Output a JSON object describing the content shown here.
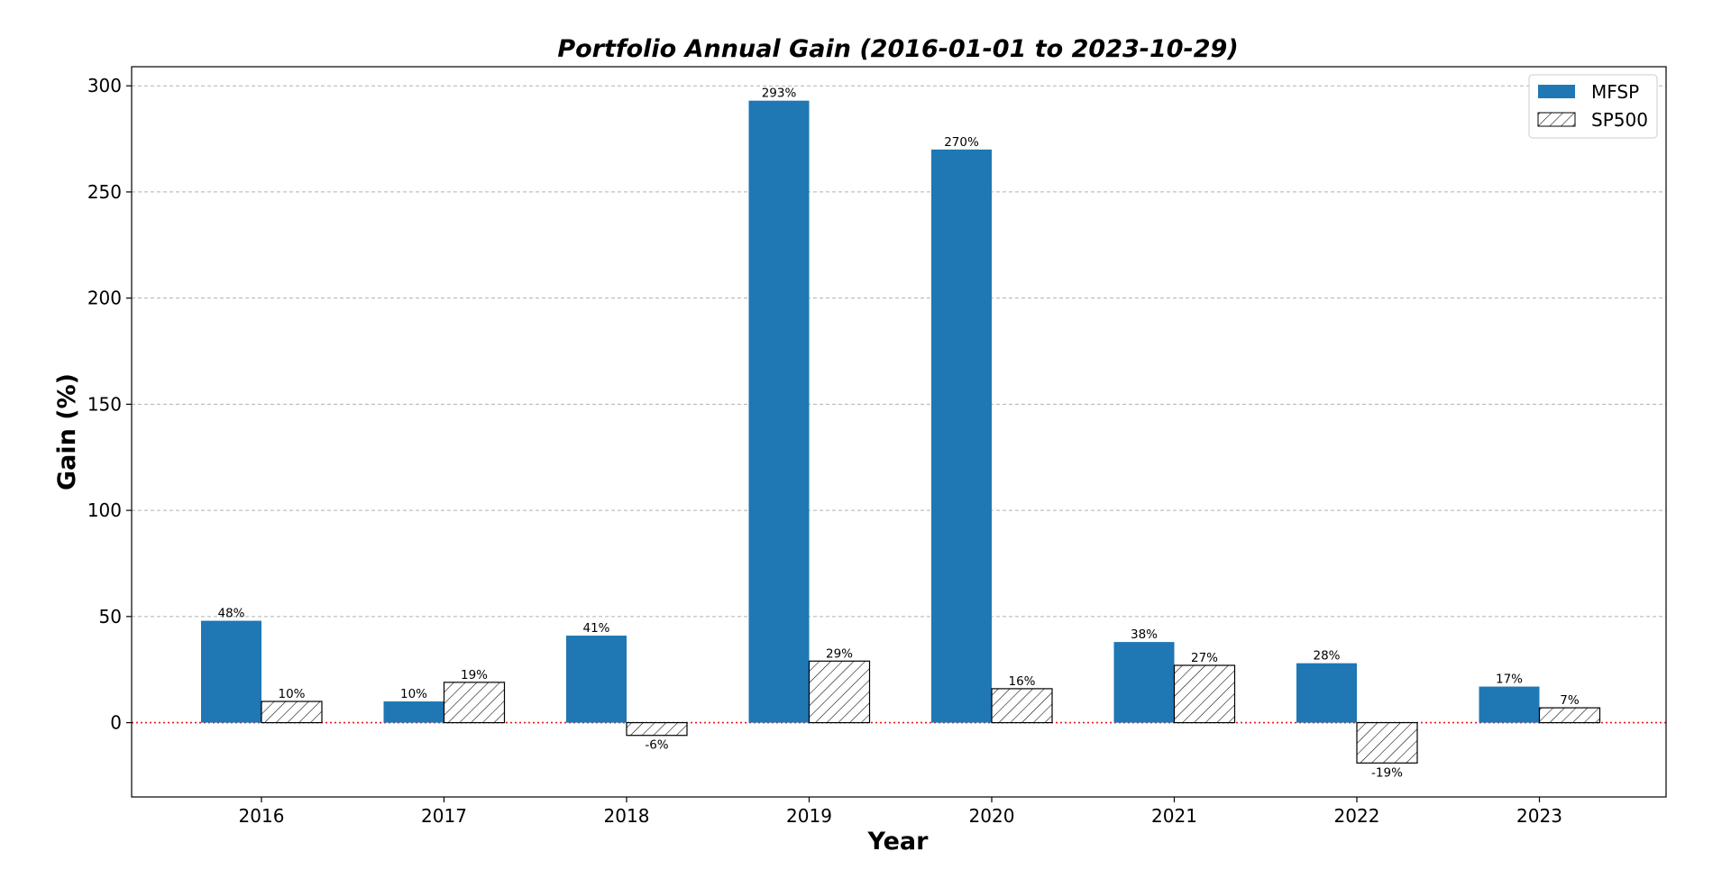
{
  "chart_data": {
    "type": "bar",
    "title": "Portfolio Annual Gain (2016-01-01 to 2023-10-29)",
    "xlabel": "Year",
    "ylabel": "Gain (%)",
    "categories": [
      "2016",
      "2017",
      "2018",
      "2019",
      "2020",
      "2021",
      "2022",
      "2023"
    ],
    "series": [
      {
        "name": "MFSP",
        "values": [
          48,
          10,
          41,
          293,
          270,
          38,
          28,
          17
        ],
        "labels": [
          "48%",
          "10%",
          "41%",
          "293%",
          "270%",
          "38%",
          "28%",
          "17%"
        ],
        "color": "#1f77b4",
        "hatch": false
      },
      {
        "name": "SP500",
        "values": [
          10,
          19,
          -6,
          29,
          16,
          27,
          -19,
          7
        ],
        "labels": [
          "10%",
          "19%",
          "-6%",
          "29%",
          "16%",
          "27%",
          "-19%",
          "7%"
        ],
        "color": "#ffffff",
        "hatch": true
      }
    ],
    "ylim": [
      -35,
      309
    ],
    "yticks": [
      0,
      50,
      100,
      150,
      200,
      250,
      300
    ],
    "ytick_labels": [
      "0",
      "50",
      "100",
      "150",
      "200",
      "250",
      "300"
    ],
    "grid": "horizontal dashed",
    "zero_line": "red dotted",
    "legend": "top-right"
  }
}
